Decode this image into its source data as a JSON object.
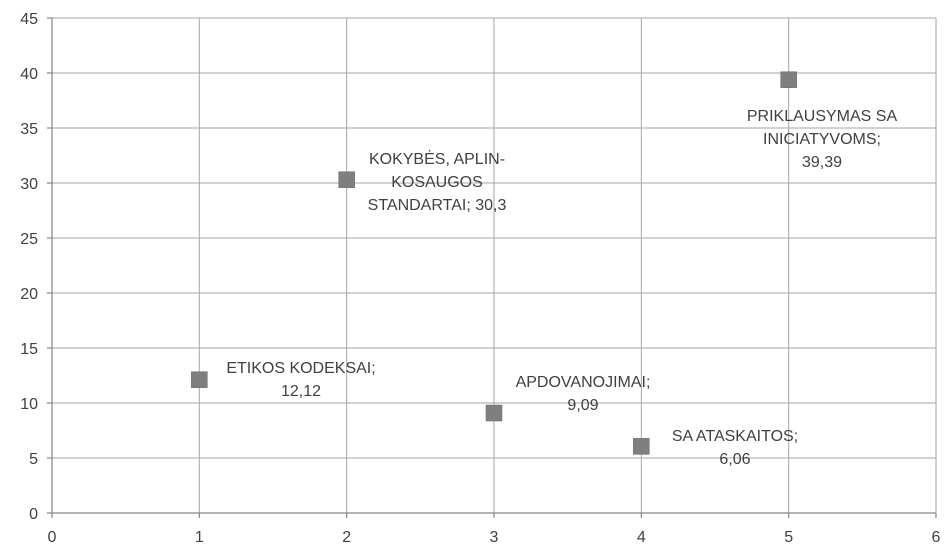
{
  "chart_data": {
    "type": "scatter",
    "title": "",
    "xlabel": "",
    "ylabel": "",
    "xlim": [
      0,
      6
    ],
    "ylim": [
      0,
      45
    ],
    "x_ticks": [
      "0",
      "1",
      "2",
      "3",
      "4",
      "5",
      "6"
    ],
    "y_ticks": [
      "0",
      "5",
      "10",
      "15",
      "20",
      "25",
      "30",
      "35",
      "40",
      "45"
    ],
    "grid": true,
    "legend": "none",
    "marker": "square",
    "marker_color": "#7f7f7f",
    "points": [
      {
        "x": 1,
        "y": 12.12,
        "label_lines": [
          "ETIKOS KODEKSAI;",
          "12,12"
        ]
      },
      {
        "x": 2,
        "y": 30.3,
        "label_lines": [
          "KOKYBĖS, APLIN-",
          "KOSAUGOS",
          "STANDARTAI; 30,3"
        ]
      },
      {
        "x": 3,
        "y": 9.09,
        "label_lines": [
          "APDOVANOJIMAI;",
          "9,09"
        ]
      },
      {
        "x": 4,
        "y": 6.06,
        "label_lines": [
          "SA ATASKAITOS;",
          "6,06"
        ]
      },
      {
        "x": 5,
        "y": 39.39,
        "label_lines": [
          "PRIKLAUSYMAS SA",
          "INICIATYVOMS;",
          "39,39"
        ]
      }
    ]
  }
}
